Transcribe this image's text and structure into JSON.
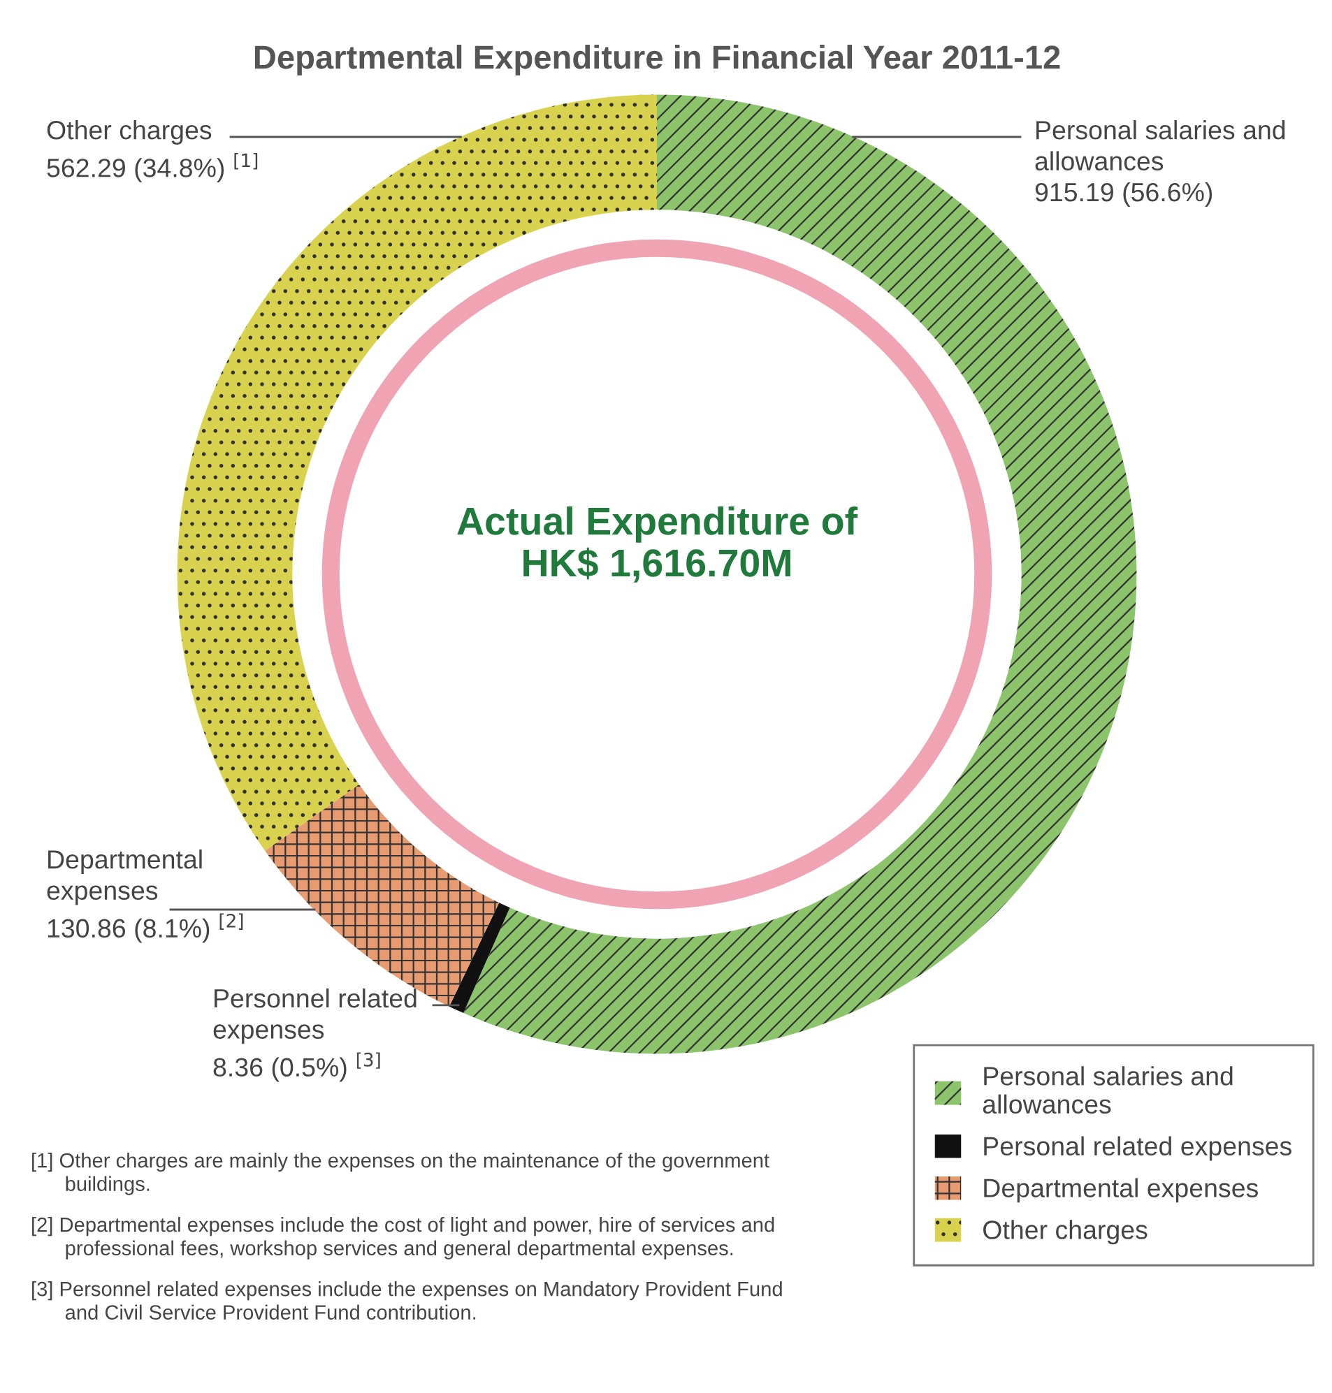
{
  "chart_data": {
    "type": "donut",
    "title": "Departmental Expenditure in Financial Year 2011-12",
    "categories": [
      "Personal salaries and allowances",
      "Personal related expenses",
      "Departmental expenses",
      "Other charges"
    ],
    "values": [
      915.19,
      8.36,
      130.86,
      562.29
    ],
    "colors": [
      "#8cc46c",
      "#111111",
      "#e89a70",
      "#d8d24e"
    ],
    "value_labels": [
      "Personal salaries and\nallowances\n915.19 (56.6%)",
      "Personnel related\nexpenses\n8.36 (0.5%) $^{[3]}$",
      "Departmental\nexpenses\n130.86 (8.1%) $^{[2]}$",
      "Other charges\n562.29 (34.8%) $^{[1]}$"
    ],
    "legend": "bottom right",
    "annotations": [
      "Actual Expenditure of\nHK$ 1,616.70M",
      "[1] Other charges are mainly the expenses on the maintenance of the government\n      buildings.",
      "[2] Departmental expenses include the cost of light and power, hire of services and\n      professional fees, workshop services and general departmental expenses.",
      "[3] Personnel related expenses include the expenses on Mandatory Provident Fund\n      and Civil Service Provident Fund contribution."
    ]
  }
}
